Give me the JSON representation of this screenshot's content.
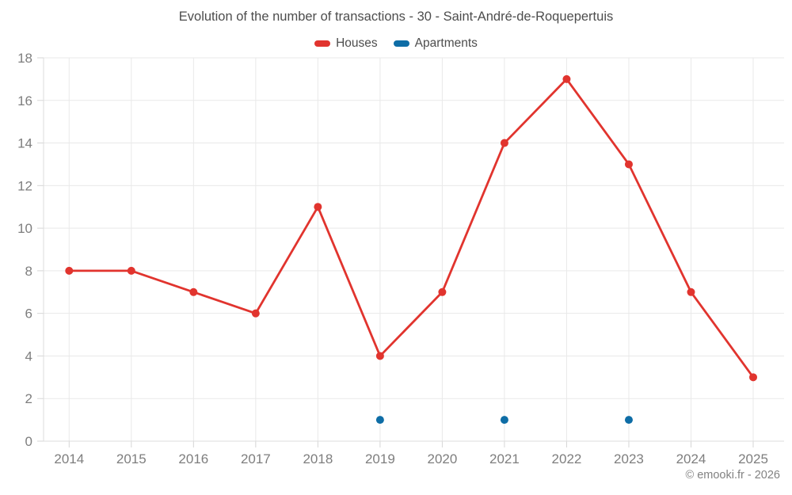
{
  "title": "Evolution of the number of transactions - 30 - Saint-André-de-Roquepertuis",
  "footer": {
    "copyright": "© emooki.fr - 2026"
  },
  "chart_data": {
    "type": "line",
    "title": "Evolution of the number of transactions - 30 - Saint-André-de-Roquepertuis",
    "categories": [
      "2014",
      "2015",
      "2016",
      "2017",
      "2018",
      "2019",
      "2020",
      "2021",
      "2022",
      "2023",
      "2024",
      "2025"
    ],
    "series": [
      {
        "name": "Houses",
        "color": "#e1342e",
        "values": [
          8,
          8,
          7,
          6,
          11,
          4,
          7,
          14,
          17,
          13,
          7,
          3
        ]
      },
      {
        "name": "Apartments",
        "color": "#0e6da6",
        "values": [
          null,
          null,
          null,
          null,
          null,
          1,
          null,
          1,
          null,
          1,
          null,
          null
        ]
      }
    ],
    "xlabel": "",
    "ylabel": "",
    "ylim": [
      0,
      18
    ],
    "ytick_step": 2,
    "grid": true,
    "legend_position": "top",
    "colors": {
      "grid_line": "#e9e9e9",
      "axis_border": "#dcdcdc",
      "axis_tick": "#d6d6d6",
      "tick_label": "#7e7e7e"
    }
  }
}
